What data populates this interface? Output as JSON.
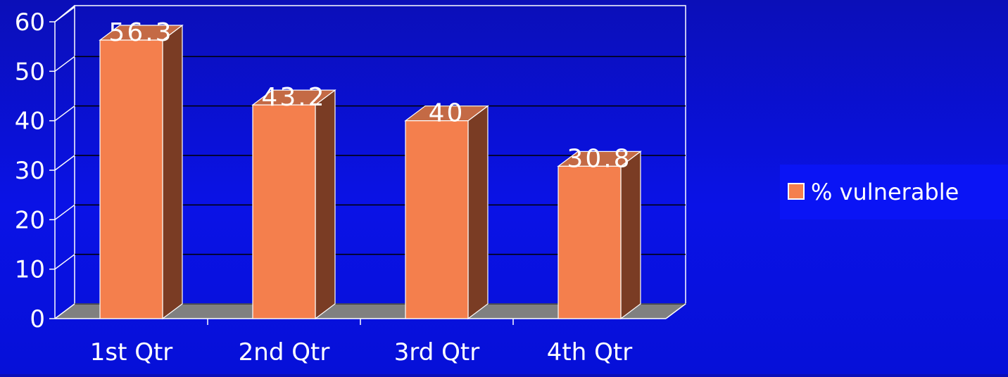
{
  "chart_data": {
    "type": "bar",
    "categories": [
      "1st Qtr",
      "2nd Qtr",
      "3rd Qtr",
      "4th Qtr"
    ],
    "series": [
      {
        "name": "% vulnerable",
        "values": [
          56.3,
          43.2,
          40,
          30.8
        ],
        "labels": [
          "56.3",
          "43.2",
          "40",
          "30.8"
        ]
      }
    ],
    "ylim": [
      0,
      60
    ],
    "yticks": [
      "0",
      "10",
      "20",
      "30",
      "40",
      "50",
      "60"
    ],
    "grid": true,
    "legend_position": "right",
    "style": "3d-column",
    "colors": {
      "background": "#0a12e6",
      "bar_front": "#f47f4d",
      "bar_side": "#7a3c24",
      "bar_top": "#c46a45",
      "floor": "#808080",
      "gridline": "#000000",
      "axis": "#ffffff",
      "text": "#ffffff",
      "legend_bg": "#0a14f5"
    }
  }
}
